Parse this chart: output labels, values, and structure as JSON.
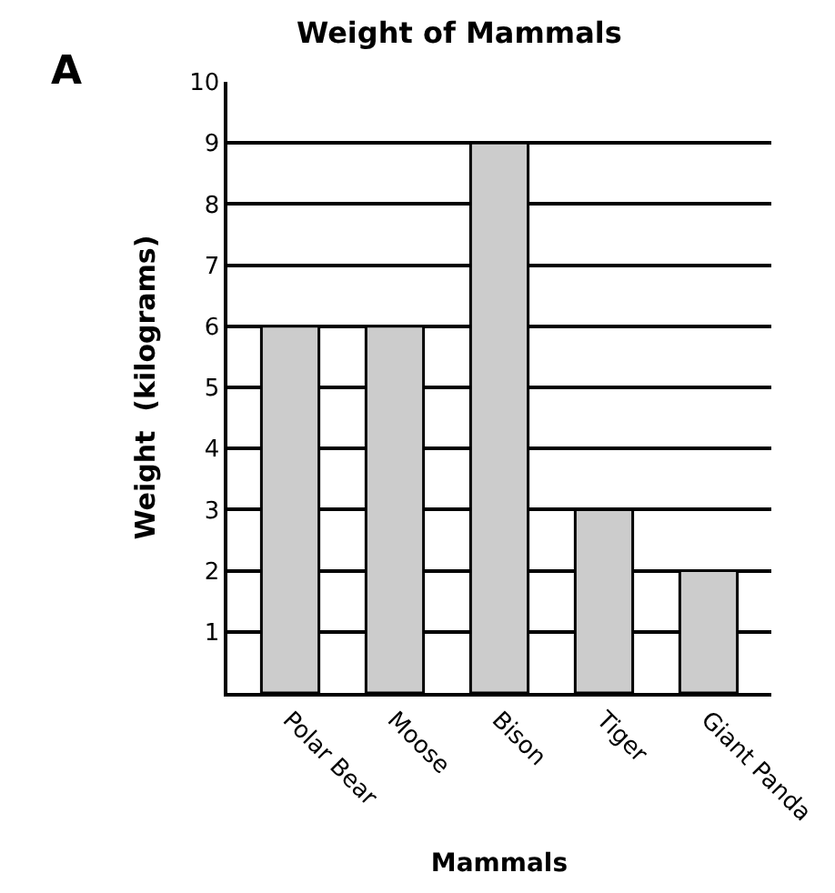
{
  "chart_data": {
    "type": "bar",
    "title": "Weight of Mammals",
    "xlabel": "Mammals",
    "ylabel": "Weight  (kilograms)",
    "annotations": [
      "A"
    ],
    "categories": [
      "Polar Bear",
      "Moose",
      "Bison",
      "Tiger",
      "Giant Panda"
    ],
    "values": [
      6,
      6,
      9,
      3,
      2
    ],
    "color": "#cccccc",
    "ylim": [
      0,
      10
    ],
    "yticks": [
      1,
      2,
      3,
      4,
      5,
      6,
      7,
      8,
      9,
      10
    ],
    "grid": "y",
    "legend": false
  }
}
